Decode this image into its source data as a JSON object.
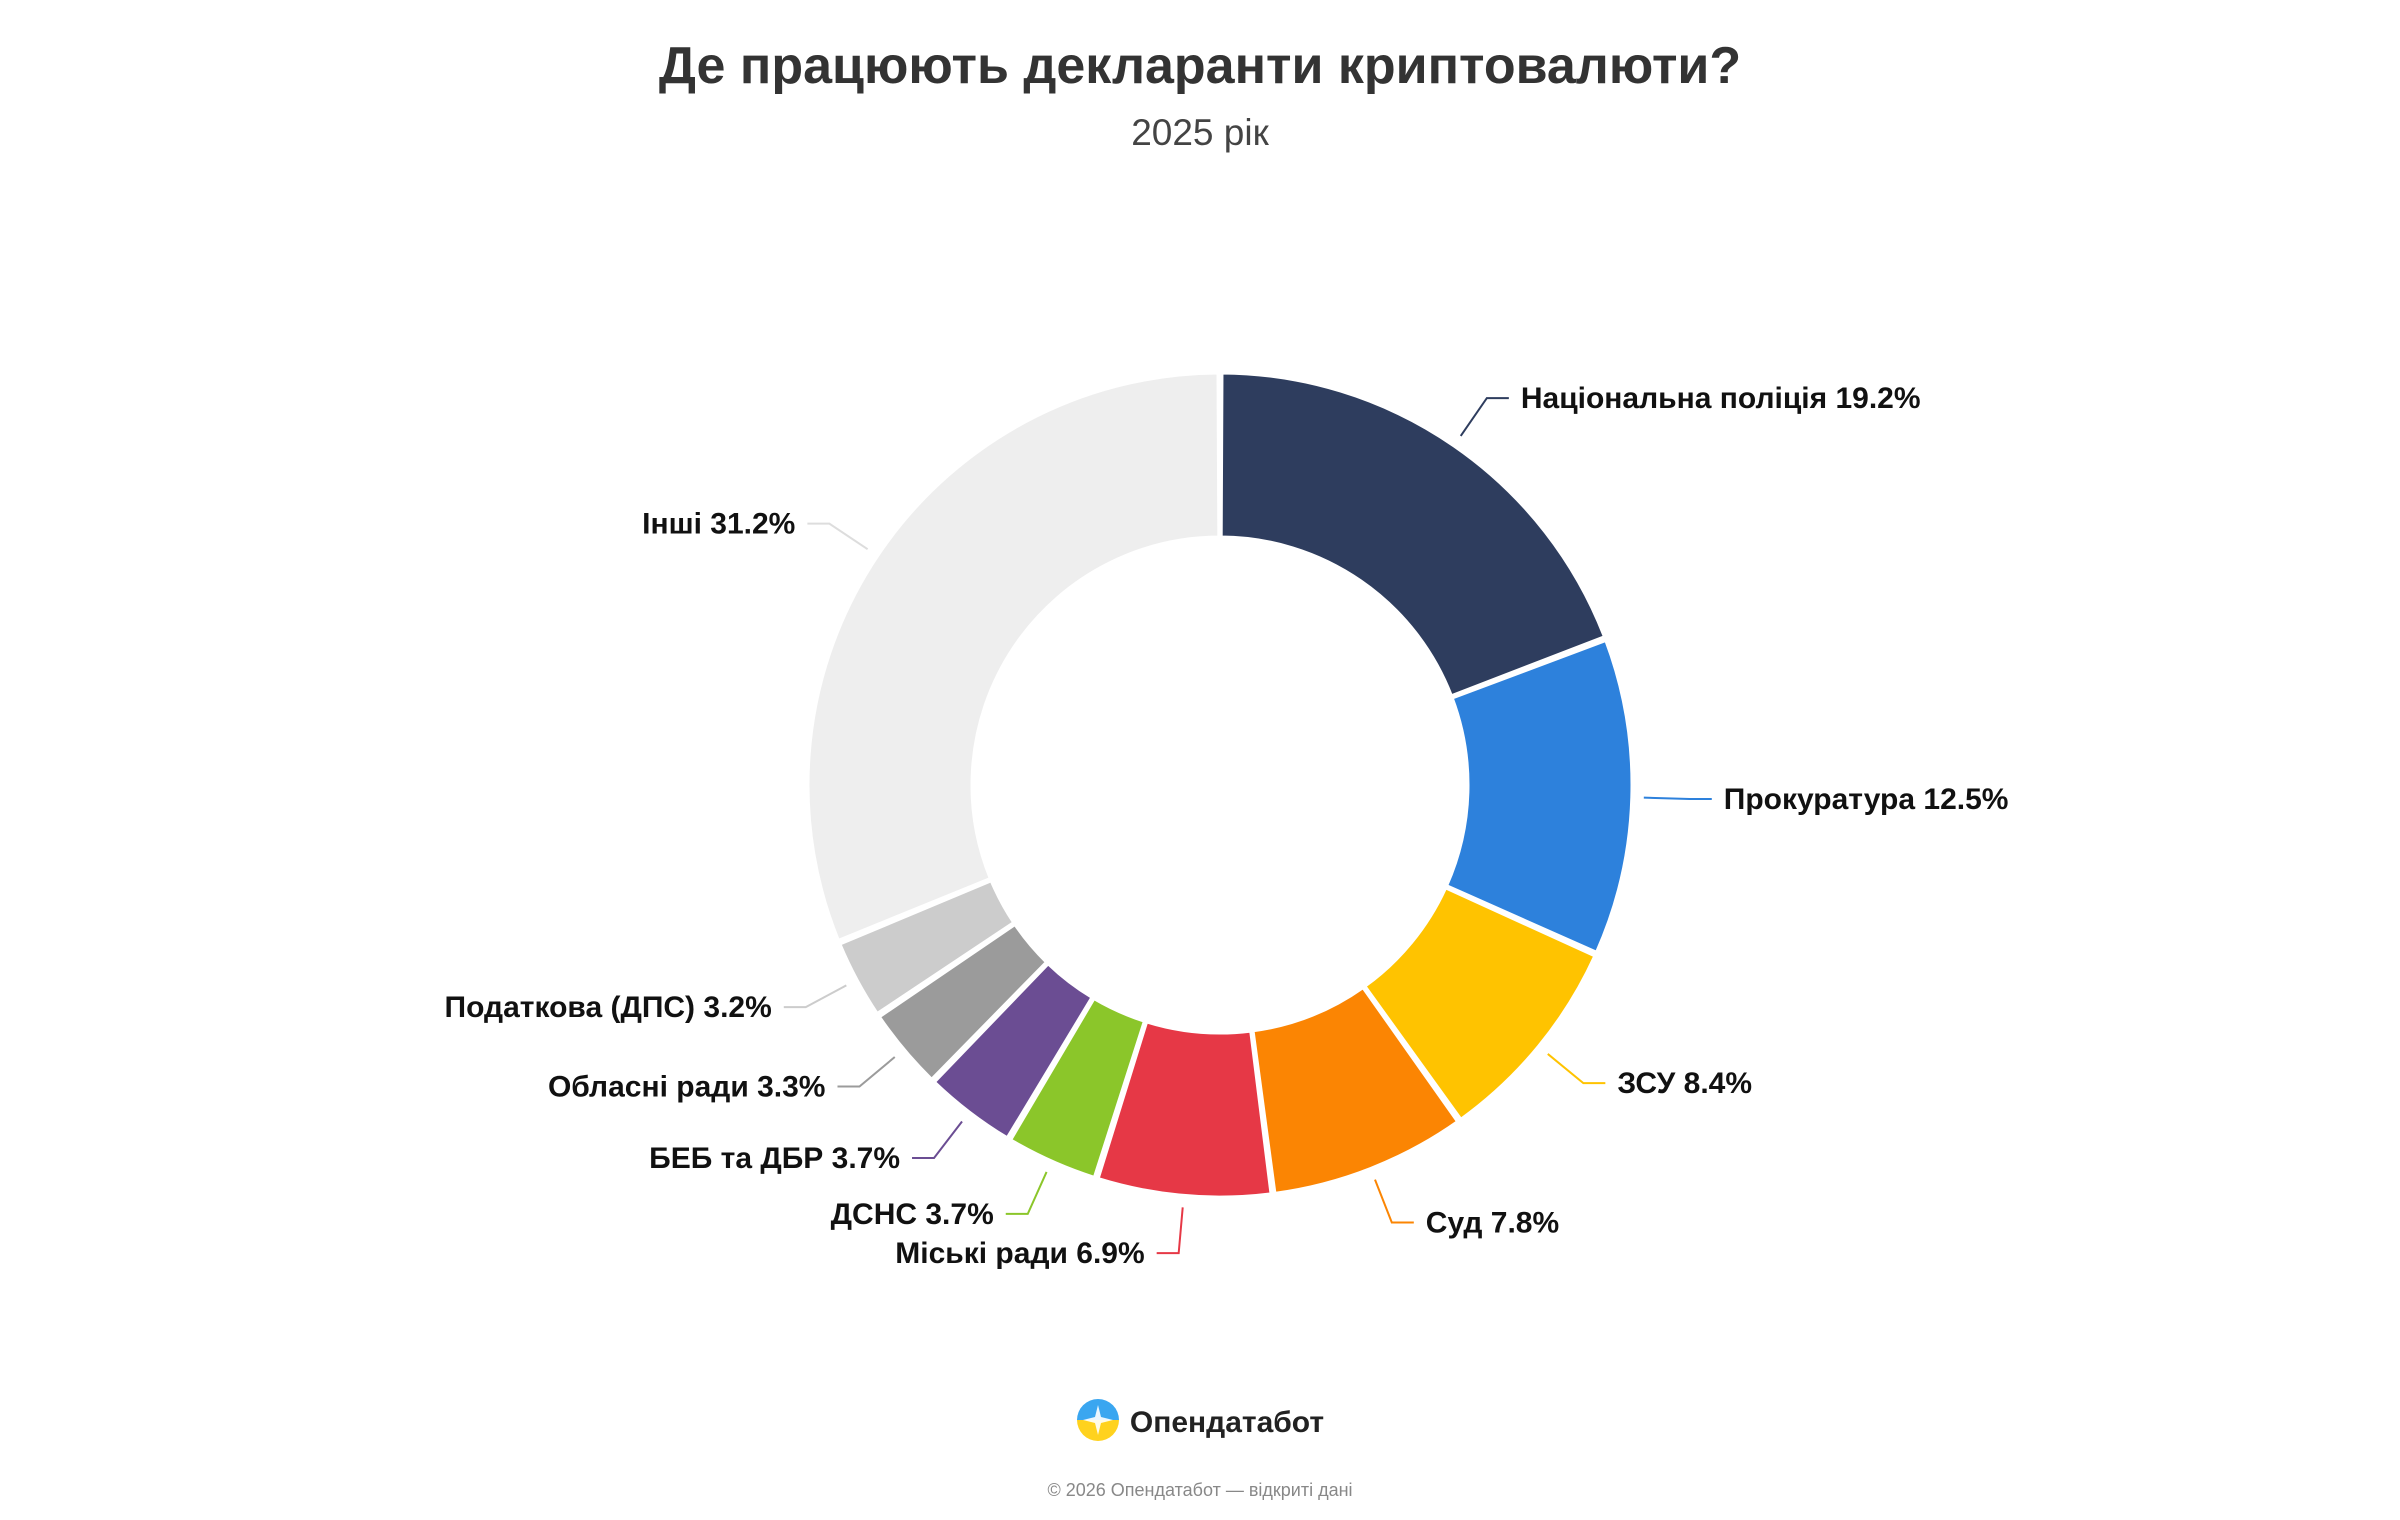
{
  "title": "Де працюють декларанти криптовалюти?",
  "subtitle": "2025 рік",
  "chart_data": {
    "type": "pie",
    "donut": true,
    "start_angle_deg": 0,
    "direction": "clockwise",
    "slices": [
      {
        "label": "Національна поліція 19.2%",
        "value": 19.2,
        "color": "#2e3d5e"
      },
      {
        "label": "Прокуратура 12.5%",
        "value": 12.5,
        "color": "#2d81dc"
      },
      {
        "label": "ЗСУ 8.4%",
        "value": 8.4,
        "color": "#ffc300"
      },
      {
        "label": "Суд 7.8%",
        "value": 7.8,
        "color": "#fb8503"
      },
      {
        "label": "Міські ради 6.9%",
        "value": 6.9,
        "color": "#e63846"
      },
      {
        "label": "ДСНС 3.7%",
        "value": 3.7,
        "color": "#8bc62a"
      },
      {
        "label": "БЕБ та ДБР 3.7%",
        "value": 3.7,
        "color": "#6b4d93"
      },
      {
        "label": "Обласні ради 3.3%",
        "value": 3.3,
        "color": "#9b9b9b"
      },
      {
        "label": "Податкова (ДПС) 3.2%",
        "value": 3.2,
        "color": "#cccccc"
      },
      {
        "label": "Інші 31.2%",
        "value": 31.2,
        "color": "#eeeeee"
      }
    ]
  },
  "brand": {
    "name": "Опендатабот",
    "logo_icon": "opendatabot-logo-icon"
  },
  "footer": {
    "copyright": "© 2026 Опендатабот — відкриті дані"
  }
}
